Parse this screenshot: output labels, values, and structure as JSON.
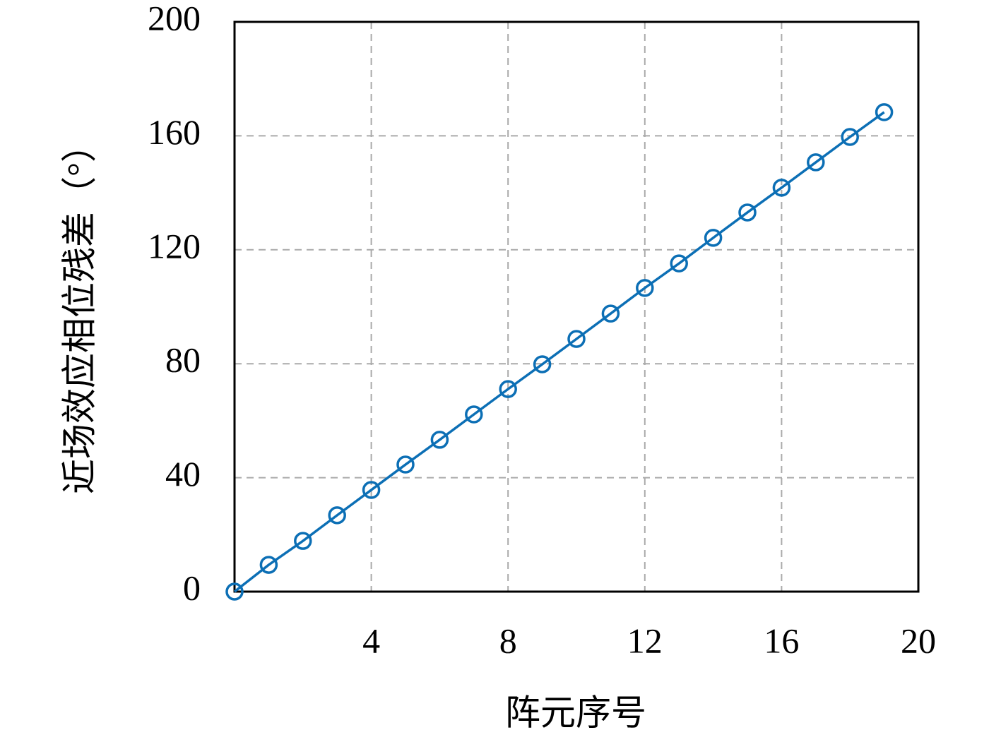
{
  "chart_data": {
    "type": "line",
    "x_label": "阵元序号",
    "y_label": "近场效应相位残差（°）",
    "x": [
      0,
      1,
      2,
      3,
      4,
      5,
      6,
      7,
      8,
      9,
      10,
      11,
      12,
      13,
      14,
      15,
      16,
      17,
      18,
      19
    ],
    "series": [
      {
        "color": "#0c6fb5",
        "values": [
          0,
          9.4,
          17.8,
          26.8,
          35.7,
          44.6,
          53.3,
          62.2,
          71.1,
          79.8,
          88.7,
          97.6,
          106.6,
          115.2,
          124.2,
          133.1,
          141.8,
          150.7,
          159.6,
          168.3
        ]
      }
    ],
    "xlim": [
      0,
      20
    ],
    "xticks": [
      4,
      8,
      12,
      16,
      20
    ],
    "ylim": [
      0,
      200
    ],
    "yticks": [
      0,
      40,
      80,
      120,
      160,
      200
    ],
    "grid": true,
    "markers": "circle"
  }
}
